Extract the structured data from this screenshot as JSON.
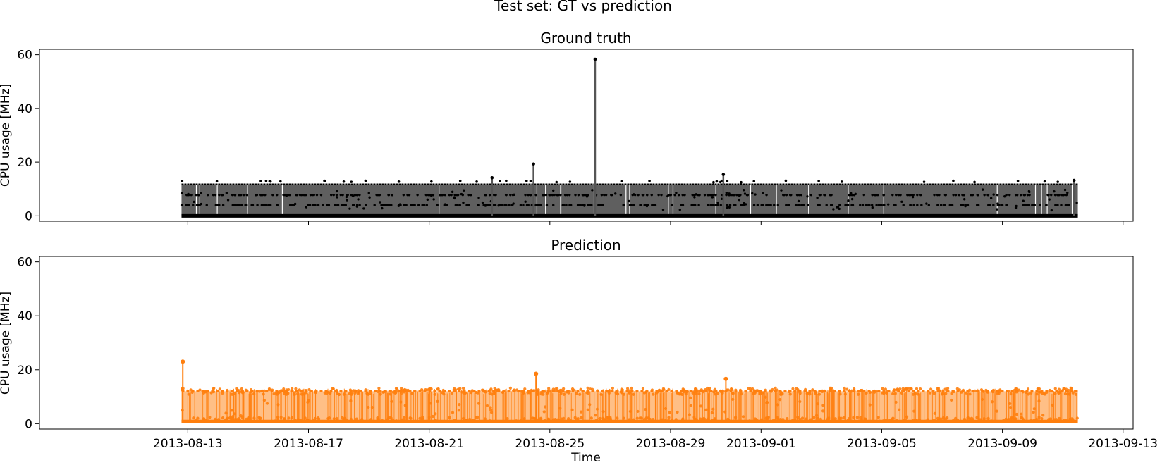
{
  "suptitle": "Test set: GT vs prediction",
  "colors": {
    "gt_line": "#555555",
    "gt_fill": "#5f5f5f",
    "gt_marker": "#000000",
    "pred_line": "#ff7f0e",
    "pred_fill": "#ffbf86",
    "pred_marker": "#ff7f0e"
  },
  "chart_data": [
    {
      "type": "line",
      "title": "Ground truth",
      "xlabel": "",
      "ylabel": "CPU usage [MHz]",
      "ylim": [
        -2,
        62
      ],
      "yticks": [
        0,
        20,
        40,
        60
      ],
      "xlim": [
        "2013-08-08T02:00",
        "2013-09-13T08:00"
      ],
      "xticks": [
        "2013-08-13",
        "2013-08-17",
        "2013-08-21",
        "2013-08-25",
        "2013-08-29",
        "2013-09-01",
        "2013-09-05",
        "2013-09-09",
        "2013-09-13"
      ],
      "show_xticklabels": false,
      "x_range": [
        "2013-08-12T19:00",
        "2013-09-11T12:00"
      ],
      "series": [
        {
          "name": "ground truth",
          "levels": [
            0,
            11.7
          ],
          "mid_values": [
            4.0,
            7.8
          ],
          "spikes": [
            {
              "x": "2013-08-23T02:00",
              "y": 14.2
            },
            {
              "x": "2013-08-24T11:00",
              "y": 19.3
            },
            {
              "x": "2013-08-26T12:00",
              "y": 58.3
            },
            {
              "x": "2013-08-30T18:00",
              "y": 15.4
            },
            {
              "x": "2013-09-11T09:00",
              "y": 13.2
            }
          ]
        }
      ]
    },
    {
      "type": "line",
      "title": "Prediction",
      "xlabel": "Time",
      "ylabel": "CPU usage [MHz]",
      "ylim": [
        -2,
        62
      ],
      "yticks": [
        0,
        20,
        40,
        60
      ],
      "xlim": [
        "2013-08-08T02:00",
        "2013-09-13T08:00"
      ],
      "xticks": [
        "2013-08-13",
        "2013-08-17",
        "2013-08-21",
        "2013-08-25",
        "2013-08-29",
        "2013-09-01",
        "2013-09-05",
        "2013-09-09",
        "2013-09-13"
      ],
      "xticklabels": [
        "2013-08-13",
        "2013-08-17",
        "2013-08-21",
        "2013-08-25",
        "2013-08-29",
        "2013-09-01",
        "2013-09-05",
        "2013-09-09",
        "2013-09-13"
      ],
      "x_range": [
        "2013-08-12T19:00",
        "2013-09-11T12:00"
      ],
      "series": [
        {
          "name": "prediction",
          "levels": [
            0.8,
            12.0
          ],
          "spikes": [
            {
              "x": "2013-08-12T20:00",
              "y": 23.0
            },
            {
              "x": "2013-08-24T13:00",
              "y": 18.5
            },
            {
              "x": "2013-08-30T20:00",
              "y": 16.6
            }
          ]
        }
      ]
    }
  ]
}
